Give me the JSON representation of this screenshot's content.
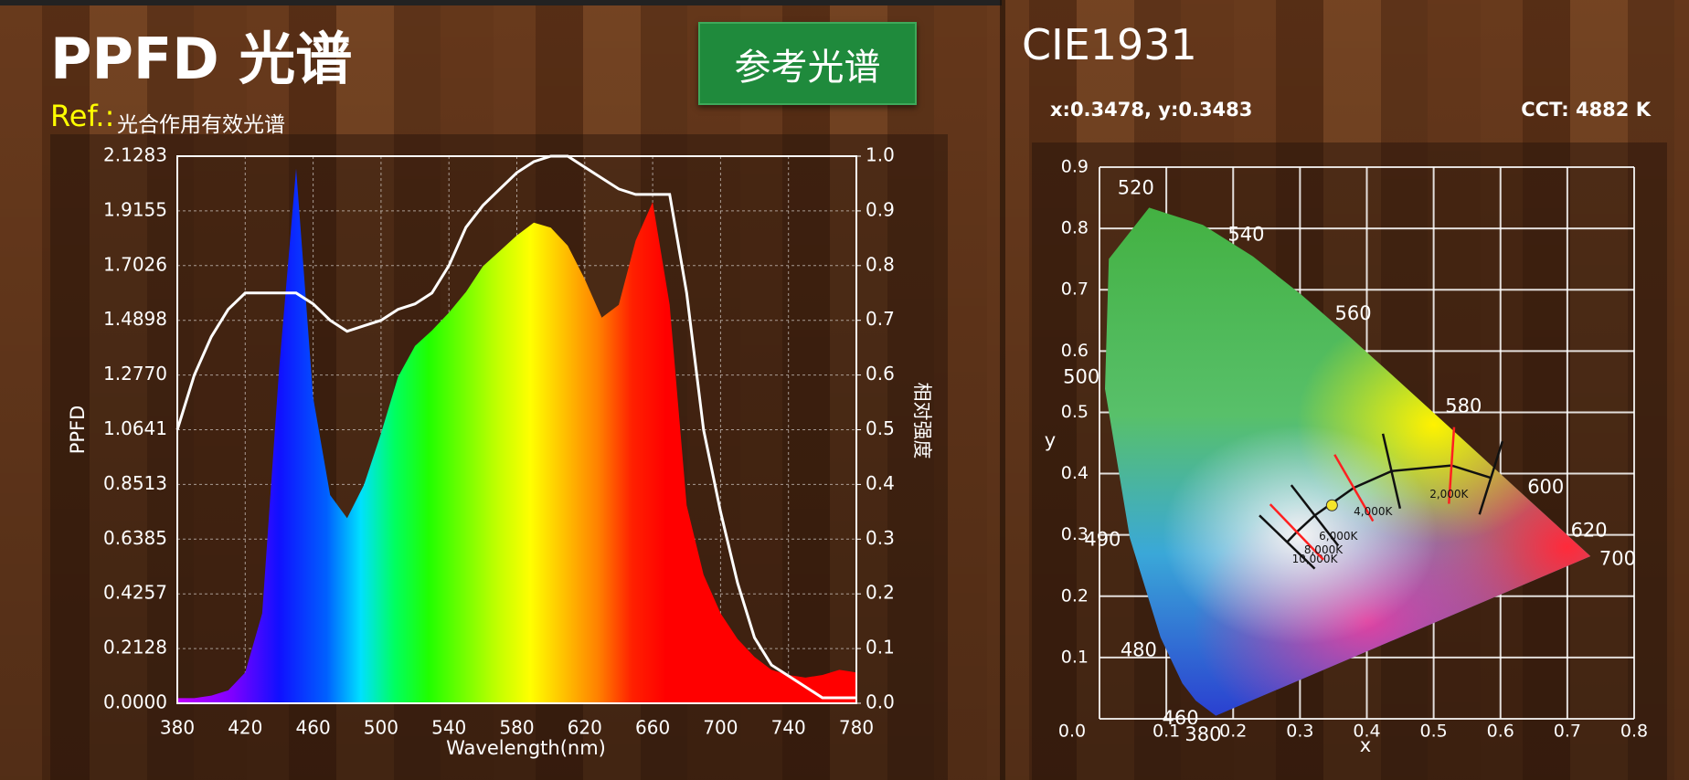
{
  "header": {
    "title": "PPFD 光谱",
    "button": "参考光谱",
    "ref_label": "Ref.:",
    "ref_name": "光合作用有效光谱"
  },
  "chart_data": [
    {
      "type": "area",
      "x_label": "Wavelength(nm)",
      "y_label": "PPFD",
      "y2_label": "相对强度",
      "x": [
        380,
        390,
        400,
        410,
        420,
        430,
        440,
        450,
        460,
        470,
        480,
        490,
        500,
        510,
        520,
        530,
        540,
        550,
        560,
        570,
        580,
        590,
        600,
        610,
        620,
        630,
        640,
        650,
        660,
        670,
        680,
        690,
        700,
        710,
        720,
        730,
        740,
        750,
        760,
        770,
        780
      ],
      "xlim": [
        380,
        780
      ],
      "xticks": [
        380,
        420,
        460,
        500,
        540,
        580,
        620,
        660,
        700,
        740,
        780
      ],
      "ylim": [
        0,
        2.1283
      ],
      "yticks": [
        {
          "value": 0,
          "label": "0.0000"
        },
        0.2128,
        0.4257,
        0.6385,
        0.8513,
        1.0641,
        {
          "value": 1.277,
          "label": "1.2770"
        },
        1.4898,
        1.7026,
        1.9155,
        2.1283
      ],
      "y2lim": [
        0,
        1
      ],
      "y2ticks": [
        {
          "value": 0,
          "label": "0.0"
        },
        0.1,
        0.2,
        0.3,
        0.4,
        0.5,
        0.6,
        0.7,
        0.8,
        0.9,
        {
          "value": 1,
          "label": "1.0"
        }
      ],
      "grid": true,
      "series": [
        {
          "values": [
            0.02,
            0.02,
            0.03,
            0.05,
            0.12,
            0.35,
            1.3,
            2.08,
            1.19,
            0.81,
            0.72,
            0.85,
            1.05,
            1.27,
            1.39,
            1.45,
            1.52,
            1.6,
            1.7,
            1.76,
            1.82,
            1.87,
            1.85,
            1.78,
            1.65,
            1.5,
            1.55,
            1.8,
            1.95,
            1.55,
            0.77,
            0.5,
            0.35,
            0.25,
            0.18,
            0.13,
            0.11,
            0.1,
            0.11,
            0.13,
            0.12
          ]
        },
        {
          "color": "#ffffff",
          "axis": "y2",
          "values": [
            0.5,
            0.6,
            0.67,
            0.72,
            0.75,
            0.75,
            0.75,
            0.75,
            0.73,
            0.7,
            0.68,
            0.69,
            0.7,
            0.72,
            0.73,
            0.75,
            0.8,
            0.87,
            0.91,
            0.94,
            0.97,
            0.99,
            1.0,
            1.0,
            0.98,
            0.96,
            0.94,
            0.93,
            0.93,
            0.93,
            0.75,
            0.5,
            0.35,
            0.22,
            0.12,
            0.07,
            0.05,
            0.03,
            0.01,
            0.01,
            0.01
          ]
        }
      ]
    },
    {
      "type": "cie1931",
      "title": "CIE1931",
      "point_text": "x:0.3478, y:0.3483",
      "cct_text": "CCT: 4882 K",
      "x_label": "x",
      "y_label": "y",
      "xlim": [
        0,
        0.8
      ],
      "xticks": [
        {
          "value": 0,
          "label": "0.0"
        },
        0.1,
        0.2,
        0.3,
        0.4,
        0.5,
        0.6,
        0.7,
        0.8
      ],
      "ylim": [
        0,
        0.9
      ],
      "yticks": [
        {
          "value": 0,
          "label": "0.0"
        },
        0.1,
        0.2,
        0.3,
        0.4,
        0.5,
        0.6,
        0.7,
        0.8,
        0.9
      ],
      "grid": true,
      "locus": {
        "x": [
          0.1741,
          0.144,
          0.1241,
          0.0913,
          0.0454,
          0.0082,
          0.0139,
          0.0743,
          0.1547,
          0.2296,
          0.3016,
          0.3731,
          0.4441,
          0.5125,
          0.5752,
          0.627,
          0.6915,
          0.7347
        ],
        "y": [
          0.005,
          0.0297,
          0.0578,
          0.1327,
          0.295,
          0.5384,
          0.7502,
          0.8338,
          0.8059,
          0.7543,
          0.6923,
          0.6245,
          0.5547,
          0.4866,
          0.4242,
          0.3725,
          0.3083,
          0.2653
        ],
        "labels": [
          380,
          460,
          null,
          480,
          490,
          500,
          null,
          520,
          null,
          540,
          null,
          560,
          null,
          580,
          null,
          600,
          620,
          700
        ]
      },
      "planckian": {
        "x": [
          0.2807,
          0.2952,
          0.3221,
          0.3805,
          0.4369,
          0.5267,
          0.5857
        ],
        "y": [
          0.2884,
          0.3048,
          0.3318,
          0.3768,
          0.4041,
          0.4133,
          0.3931
        ],
        "labels": [
          "10,000K",
          "8,000K",
          "6,000K",
          "4,000K",
          null,
          "2,000K",
          null
        ]
      },
      "series": [
        {
          "color": "#f5e52a",
          "x": [
            0.3478
          ],
          "values": [
            0.3483
          ]
        }
      ]
    }
  ]
}
